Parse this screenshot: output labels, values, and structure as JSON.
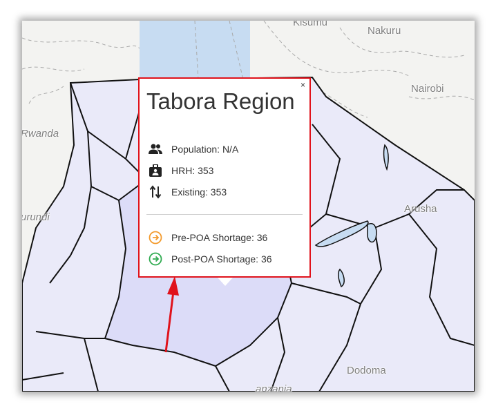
{
  "map": {
    "places": {
      "kisumu": "Kisumu",
      "nakuru": "Nakuru",
      "nairobi": "Nairobi",
      "rwanda": "Rwanda",
      "burundi": "urundi",
      "arusha": "Arusha",
      "dodoma": "Dodoma",
      "tanzania": "anzania"
    },
    "colors": {
      "region_fill": "#e9e9f9",
      "selected_fill": "#dcdcf8",
      "lake": "#c7dcf2",
      "border": "#111111",
      "popup_border": "#e0121b",
      "annotation_arrow": "#e0121b"
    }
  },
  "popup": {
    "title": "Tabora Region",
    "close": "×",
    "population": "Population: N/A",
    "hrh": "HRH: 353",
    "existing": "Existing: 353",
    "pre_poa": "Pre-POA Shortage: 36",
    "post_poa": "Post-POA Shortage: 36",
    "icons": {
      "population": "people-icon",
      "hrh": "badge-icon",
      "existing": "swap-vertical-icon",
      "pre_poa": "arrow-circle-right-icon",
      "post_poa": "arrow-circle-right-icon"
    },
    "colors": {
      "pre_poa": "#f39a2c",
      "post_poa": "#2eaa4f"
    }
  }
}
